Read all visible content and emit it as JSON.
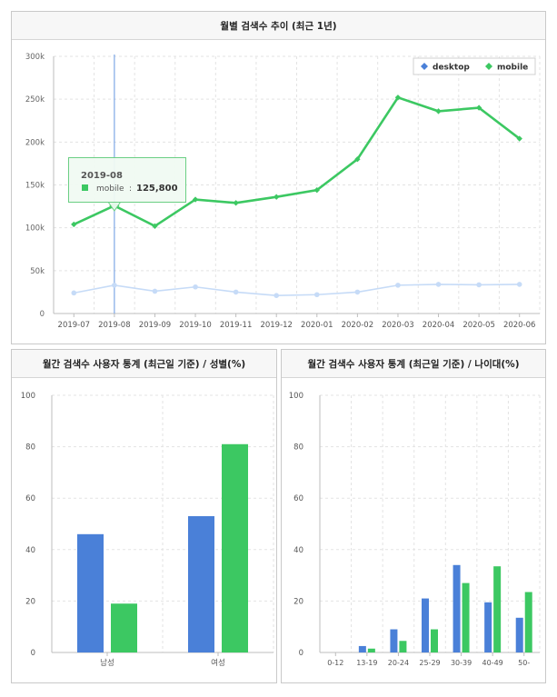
{
  "panels": {
    "trend_title": "월별 검색수 추이 (최근 1년)",
    "gender_title": "월간 검색수 사용자 통계 (최근일 기준) / 성별(%)",
    "age_title": "월간 검색수 사용자 통계 (최근일 기준) / 나이대(%)"
  },
  "tooltip": {
    "date": "2019-08",
    "series": "mobile",
    "colon": ":",
    "value": "125,800"
  },
  "colors": {
    "desktop": "#4a80d8",
    "mobile": "#3cc862",
    "desktop_faded": "#c6dbf7",
    "grid": "#e3e3e3",
    "crosshair": "#7fa8e6"
  },
  "chart_data": [
    {
      "id": "trend",
      "type": "line",
      "x": [
        "2019-07",
        "2019-08",
        "2019-09",
        "2019-10",
        "2019-11",
        "2019-12",
        "2020-01",
        "2020-02",
        "2020-03",
        "2020-04",
        "2020-05",
        "2020-06"
      ],
      "ylim": [
        0,
        300000
      ],
      "yticks": [
        0,
        50000,
        100000,
        150000,
        200000,
        250000,
        300000
      ],
      "ytick_labels": [
        "0",
        "50k",
        "100k",
        "150k",
        "200k",
        "250k",
        "300k"
      ],
      "legend_position": "top-right",
      "grid": true,
      "highlight_index": 1,
      "series": [
        {
          "name": "desktop",
          "values": [
            24000,
            33000,
            26000,
            31000,
            25000,
            21000,
            22000,
            25000,
            33000,
            34000,
            33500,
            34000
          ]
        },
        {
          "name": "mobile",
          "values": [
            104000,
            125800,
            102000,
            133000,
            129000,
            136000,
            144000,
            180000,
            252000,
            236000,
            240000,
            204000
          ]
        }
      ]
    },
    {
      "id": "gender",
      "type": "bar",
      "categories": [
        "남성",
        "여성"
      ],
      "ylim": [
        0,
        100
      ],
      "yticks": [
        0,
        20,
        40,
        60,
        80,
        100
      ],
      "grid": true,
      "series": [
        {
          "name": "desktop",
          "values": [
            46,
            53
          ]
        },
        {
          "name": "mobile",
          "values": [
            19,
            81
          ]
        }
      ]
    },
    {
      "id": "age",
      "type": "bar",
      "categories": [
        "0-12",
        "13-19",
        "20-24",
        "25-29",
        "30-39",
        "40-49",
        "50-"
      ],
      "ylim": [
        0,
        100
      ],
      "yticks": [
        0,
        20,
        40,
        60,
        80,
        100
      ],
      "grid": true,
      "series": [
        {
          "name": "desktop",
          "values": [
            0,
            2.5,
            9,
            21,
            34,
            19.5,
            13.5
          ]
        },
        {
          "name": "mobile",
          "values": [
            0,
            1.5,
            4.5,
            9,
            27,
            33.5,
            23.5
          ]
        }
      ]
    }
  ]
}
